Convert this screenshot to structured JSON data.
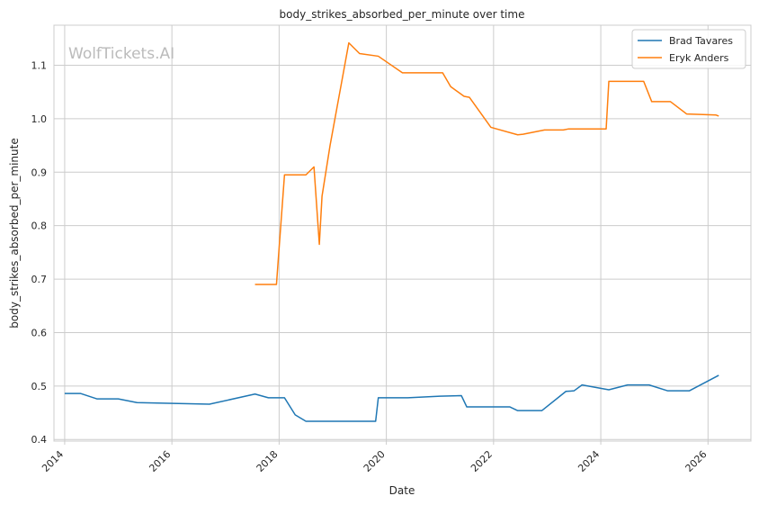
{
  "watermark": "WolfTickets.AI",
  "chart_data": {
    "type": "line",
    "title": "body_strikes_absorbed_per_minute over time",
    "xlabel": "Date",
    "ylabel": "body_strikes_absorbed_per_minute",
    "xlim": [
      2013.8,
      2026.8
    ],
    "ylim": [
      0.397,
      1.175
    ],
    "x_ticks": [
      "2014",
      "2016",
      "2018",
      "2020",
      "2022",
      "2024",
      "2026"
    ],
    "y_ticks": [
      "0.4",
      "0.5",
      "0.6",
      "0.7",
      "0.8",
      "0.9",
      "1.0",
      "1.1"
    ],
    "grid": true,
    "legend_position": "top-right",
    "series": [
      {
        "name": "Brad Tavares",
        "color": "#1f77b4",
        "x": [
          2014.0,
          2014.3,
          2014.6,
          2015.0,
          2015.35,
          2016.7,
          2017.55,
          2017.8,
          2018.1,
          2018.3,
          2018.5,
          2019.25,
          2019.8,
          2019.85,
          2020.4,
          2021.0,
          2021.4,
          2021.5,
          2022.3,
          2022.45,
          2022.9,
          2023.35,
          2023.5,
          2023.65,
          2024.15,
          2024.5,
          2024.9,
          2025.25,
          2025.65,
          2026.2
        ],
        "y": [
          0.486,
          0.486,
          0.476,
          0.476,
          0.469,
          0.466,
          0.485,
          0.478,
          0.478,
          0.446,
          0.434,
          0.434,
          0.434,
          0.478,
          0.478,
          0.481,
          0.482,
          0.461,
          0.461,
          0.454,
          0.454,
          0.49,
          0.491,
          0.502,
          0.493,
          0.502,
          0.502,
          0.491,
          0.491,
          0.52
        ]
      },
      {
        "name": "Eryk Anders",
        "color": "#ff7f0e",
        "x": [
          2017.55,
          2017.95,
          2018.1,
          2018.5,
          2018.65,
          2018.75,
          2018.8,
          2018.95,
          2019.3,
          2019.5,
          2019.85,
          2020.3,
          2021.05,
          2021.2,
          2021.45,
          2021.55,
          2021.95,
          2022.45,
          2022.55,
          2022.95,
          2023.3,
          2023.4,
          2023.6,
          2024.1,
          2024.15,
          2024.3,
          2024.8,
          2024.95,
          2025.3,
          2025.6,
          2026.15,
          2026.2
        ],
        "y": [
          0.69,
          0.69,
          0.895,
          0.895,
          0.91,
          0.765,
          0.855,
          0.95,
          1.142,
          1.122,
          1.117,
          1.086,
          1.086,
          1.06,
          1.042,
          1.04,
          0.984,
          0.97,
          0.971,
          0.979,
          0.979,
          0.981,
          0.981,
          0.981,
          1.07,
          1.07,
          1.07,
          1.032,
          1.032,
          1.009,
          1.007,
          1.005
        ]
      }
    ]
  }
}
